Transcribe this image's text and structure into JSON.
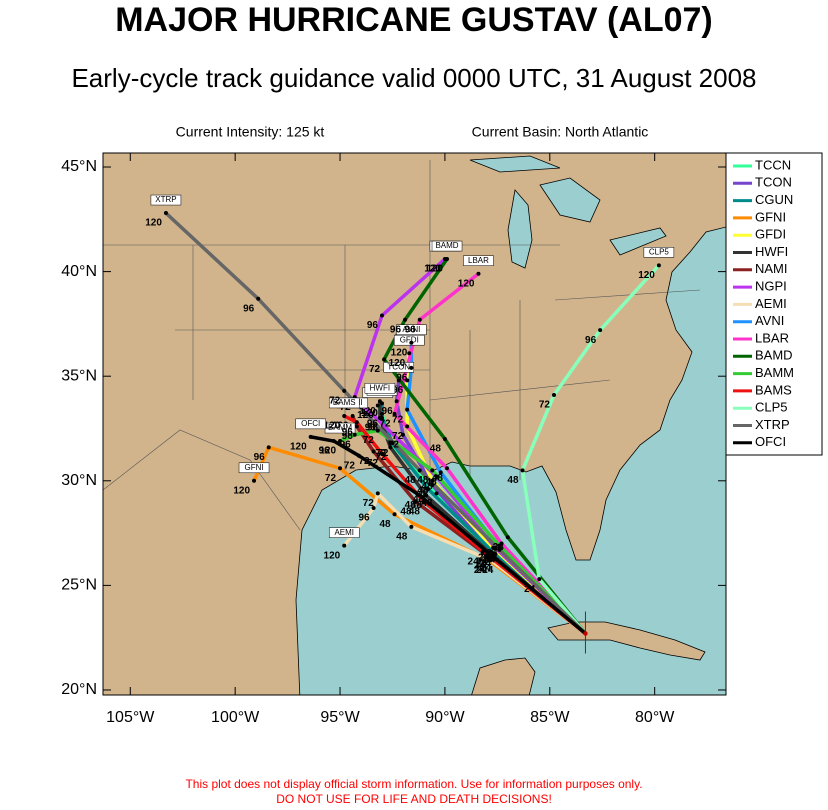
{
  "chart_data": {
    "type": "track-map",
    "title": "MAJOR HURRICANE GUSTAV (AL07)",
    "subtitle": "Early-cycle track guidance valid 0000 UTC, 31 August 2008",
    "intensity": "Current Intensity: 125 kt",
    "basin": "Current Basin: North Atlantic",
    "disclaimer": [
      "This plot does not display official storm information. Use for information purposes only.",
      "DO NOT USE FOR LIFE AND DEATH DECISIONS!"
    ],
    "xlim": [
      -106.3,
      -76.6
    ],
    "ylim": [
      19.76,
      45.67
    ],
    "xticks": [
      {
        "value": -105,
        "label": "105°W"
      },
      {
        "value": -100,
        "label": "100°W"
      },
      {
        "value": -95,
        "label": "95°W"
      },
      {
        "value": -90,
        "label": "90°W"
      },
      {
        "value": -85,
        "label": "85°W"
      },
      {
        "value": -80,
        "label": "80°W"
      }
    ],
    "yticks": [
      {
        "value": 20,
        "label": "20°N"
      },
      {
        "value": 25,
        "label": "25°N"
      },
      {
        "value": 30,
        "label": "30°N"
      },
      {
        "value": 35,
        "label": "35°N"
      },
      {
        "value": 40,
        "label": "40°N"
      },
      {
        "value": 45,
        "label": "45°N"
      }
    ],
    "hours": [
      24,
      48,
      72,
      96,
      120
    ],
    "series": [
      {
        "name": "TCCN",
        "color": "#33ff99",
        "x": [
          -83.3,
          -87.6,
          -90.4,
          -92.6,
          -93.0,
          -93.2
        ],
        "values": [
          22.7,
          26.3,
          29.4,
          31.8,
          33.2,
          33.6
        ]
      },
      {
        "name": "TCON",
        "color": "#7744cc",
        "x": [
          -83.3,
          -87.8,
          -90.6,
          -92.0,
          -92.3,
          -92.2
        ],
        "values": [
          22.7,
          26.6,
          29.8,
          32.2,
          33.8,
          34.8
        ]
      },
      {
        "name": "CGUN",
        "color": "#008b8b",
        "x": [
          -83.3,
          -87.6,
          -90.8,
          -92.5,
          -93.0,
          -93.0
        ],
        "values": [
          22.7,
          26.5,
          29.6,
          31.8,
          33.0,
          33.7
        ]
      },
      {
        "name": "GFNI",
        "color": "#ff8c00",
        "x": [
          -83.3,
          -87.9,
          -92.4,
          -95.0,
          -98.4,
          -99.1
        ],
        "values": [
          22.7,
          26.2,
          28.4,
          30.6,
          31.6,
          30.0
        ]
      },
      {
        "name": "GFDI",
        "color": "#ffff33",
        "x": [
          -83.3,
          -87.7,
          -90.6,
          -91.8,
          -91.8,
          -91.7
        ],
        "values": [
          22.7,
          26.8,
          30.0,
          32.6,
          34.8,
          36.1
        ]
      },
      {
        "name": "HWFI",
        "color": "#333333",
        "x": [
          -83.3,
          -87.8,
          -90.9,
          -92.6,
          -93.1,
          -93.1
        ],
        "values": [
          22.7,
          26.5,
          29.3,
          31.6,
          33.0,
          33.8
        ]
      },
      {
        "name": "NAMI",
        "color": "#8b2020",
        "x": [
          -83.3,
          -88.2,
          -91.4,
          -93.4,
          -94.2,
          -94.4
        ],
        "values": [
          22.7,
          26.6,
          29.0,
          31.4,
          32.6,
          33.1
        ]
      },
      {
        "name": "NGPI",
        "color": "#bb33ee",
        "x": [
          -83.3,
          -87.6,
          -90.4,
          -94.3,
          -93.0,
          -90.0
        ],
        "values": [
          22.7,
          26.8,
          30.2,
          34.0,
          37.9,
          40.6
        ]
      },
      {
        "name": "AEMI",
        "color": "#f5deb3",
        "x": [
          -83.3,
          -87.8,
          -91.6,
          -93.2,
          -93.4,
          -94.8
        ],
        "values": [
          22.7,
          26.2,
          27.8,
          29.4,
          28.7,
          26.9
        ]
      },
      {
        "name": "AVNI",
        "color": "#1e90ff",
        "x": [
          -83.3,
          -87.4,
          -90.2,
          -91.8,
          -91.6,
          -91.6
        ],
        "values": [
          22.7,
          26.8,
          30.4,
          33.4,
          35.4,
          36.6
        ]
      },
      {
        "name": "LBAR",
        "color": "#ff33cc",
        "x": [
          -83.3,
          -87.3,
          -89.9,
          -92.4,
          -91.2,
          -88.4
        ],
        "values": [
          22.7,
          27.0,
          30.6,
          33.2,
          37.7,
          39.9
        ]
      },
      {
        "name": "BAMD",
        "color": "#006400",
        "x": [
          -83.3,
          -87.0,
          -90.0,
          -92.9,
          -91.9,
          -89.9
        ],
        "values": [
          22.7,
          27.3,
          32.0,
          35.8,
          37.7,
          40.6
        ]
      },
      {
        "name": "BAMM",
        "color": "#33cc33",
        "x": [
          -83.3,
          -87.4,
          -90.6,
          -93.2,
          -94.3,
          -95.0
        ],
        "values": [
          22.7,
          26.9,
          30.5,
          32.4,
          32.2,
          31.9
        ]
      },
      {
        "name": "BAMS",
        "color": "#ee1111",
        "x": [
          -83.3,
          -87.9,
          -91.0,
          -93.0,
          -94.2,
          -94.8
        ],
        "values": [
          22.7,
          26.4,
          29.0,
          31.3,
          32.8,
          33.1
        ]
      },
      {
        "name": "CLP5",
        "color": "#88ffbb",
        "x": [
          -83.3,
          -85.5,
          -86.3,
          -84.8,
          -82.6,
          -79.8
        ],
        "values": [
          22.7,
          25.3,
          30.5,
          34.1,
          37.2,
          40.3
        ]
      },
      {
        "name": "XTRP",
        "color": "#666666",
        "x": [
          -83.3,
          -87.4,
          -91.2,
          -94.8,
          -98.9,
          -103.3
        ],
        "values": [
          22.7,
          26.7,
          30.5,
          34.3,
          38.7,
          42.8
        ]
      },
      {
        "name": "OFCI",
        "color": "#000000",
        "x": [
          -83.3,
          -87.5,
          -91.2,
          -94.1,
          -95.3,
          -96.4
        ],
        "values": [
          22.7,
          26.2,
          29.3,
          31.2,
          31.9,
          32.1
        ]
      }
    ]
  }
}
